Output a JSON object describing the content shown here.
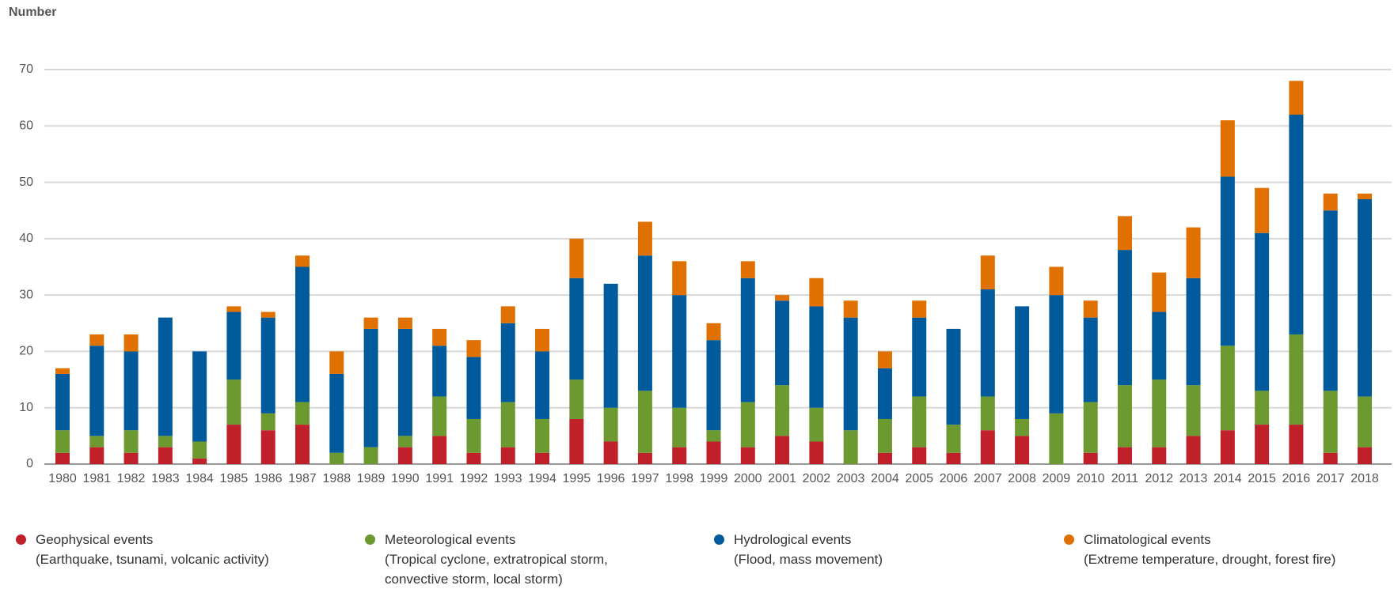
{
  "chart_data": {
    "type": "stacked-bar",
    "y_label": "Number",
    "categories": [
      "1980",
      "1981",
      "1982",
      "1983",
      "1984",
      "1985",
      "1986",
      "1987",
      "1988",
      "1989",
      "1990",
      "1991",
      "1992",
      "1993",
      "1994",
      "1995",
      "1996",
      "1997",
      "1998",
      "1999",
      "2000",
      "2001",
      "2002",
      "2003",
      "2004",
      "2005",
      "2006",
      "2007",
      "2008",
      "2009",
      "2010",
      "2011",
      "2012",
      "2013",
      "2014",
      "2015",
      "2016",
      "2017",
      "2018"
    ],
    "series": [
      {
        "name": "Geophysical events",
        "description": "(Earthquake, tsunami, volcanic activity)",
        "color": "#c0202a",
        "values": [
          2,
          3,
          2,
          3,
          1,
          7,
          6,
          7,
          0,
          0,
          3,
          5,
          2,
          3,
          2,
          8,
          4,
          2,
          3,
          4,
          3,
          5,
          4,
          0,
          2,
          3,
          2,
          6,
          5,
          0,
          2,
          3,
          3,
          5,
          6,
          7,
          7,
          2,
          3
        ]
      },
      {
        "name": "Meteorological events",
        "description": "(Tropical cyclone, extratropical storm, convective storm, local storm)",
        "color": "#6c9a30",
        "values": [
          4,
          2,
          4,
          2,
          3,
          8,
          3,
          4,
          2,
          3,
          2,
          7,
          6,
          8,
          6,
          7,
          6,
          11,
          7,
          2,
          8,
          9,
          6,
          6,
          6,
          9,
          5,
          6,
          3,
          9,
          9,
          11,
          12,
          9,
          15,
          6,
          16,
          11,
          9
        ]
      },
      {
        "name": "Hydrological events",
        "description": "(Flood, mass movement)",
        "color": "#005a9c",
        "values": [
          10,
          16,
          14,
          21,
          16,
          12,
          17,
          24,
          14,
          21,
          19,
          9,
          11,
          14,
          12,
          18,
          22,
          24,
          20,
          16,
          22,
          15,
          18,
          20,
          9,
          14,
          17,
          19,
          20,
          21,
          15,
          24,
          12,
          19,
          30,
          28,
          39,
          32,
          35
        ]
      },
      {
        "name": "Climatological events",
        "description": "(Extreme temperature, drought, forest fire)",
        "color": "#e07000",
        "values": [
          1,
          2,
          3,
          0,
          0,
          1,
          1,
          2,
          4,
          2,
          2,
          3,
          3,
          3,
          4,
          7,
          0,
          6,
          6,
          3,
          3,
          1,
          5,
          3,
          3,
          3,
          0,
          6,
          0,
          5,
          3,
          6,
          7,
          9,
          10,
          8,
          6,
          3,
          1
        ]
      }
    ],
    "ylim": [
      0,
      70
    ],
    "yticks": [
      0,
      10,
      20,
      30,
      40,
      50,
      60,
      70
    ],
    "grid": true
  }
}
